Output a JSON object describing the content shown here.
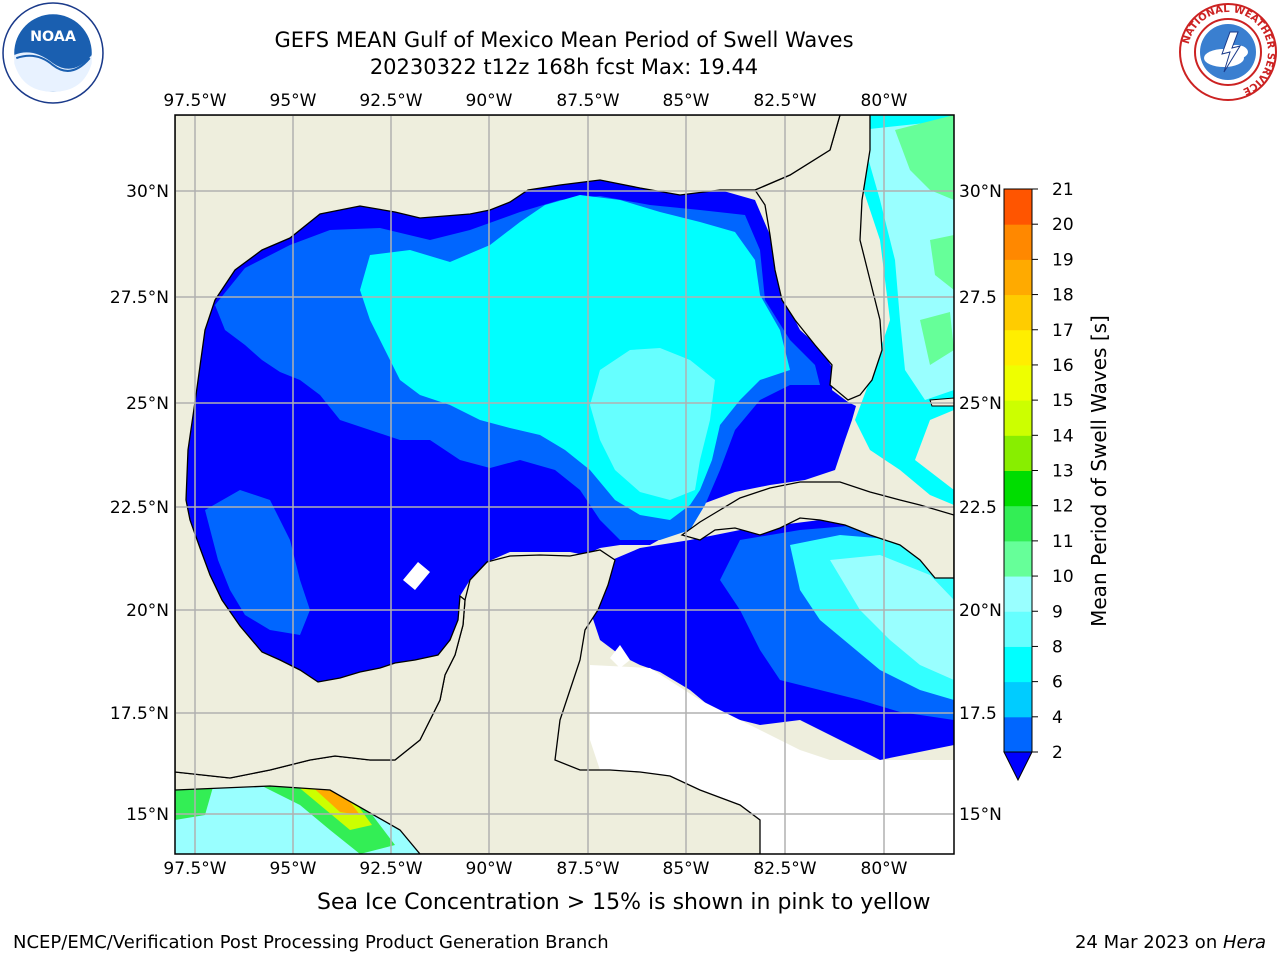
{
  "title": {
    "line1": "GEFS MEAN Gulf of Mexico Mean Period of Swell Waves",
    "line2": "20230322 t12z 168h fcst   Max: 19.44"
  },
  "logos": {
    "left": "noaa-logo",
    "right": "national-weather-service-logo",
    "right_text": "NATIONAL WEATHER SERVICE"
  },
  "map": {
    "lon_ticks": [
      "97.5°W",
      "95°W",
      "92.5°W",
      "90°W",
      "87.5°W",
      "85°W",
      "82.5°W",
      "80°W"
    ],
    "lat_ticks_left": [
      "30°N",
      "27.5°N",
      "25°N",
      "22.5°N",
      "20°N",
      "17.5°N",
      "15°N"
    ],
    "lat_ticks_right": [
      "30°N",
      "27.5",
      "25°N",
      "22.5",
      "20°N",
      "17.5",
      "15°N"
    ],
    "land_color": "#eeeedd",
    "grid_color": "#b0b0b0"
  },
  "colorbar": {
    "label": "Mean Period of Swell Waves [s]",
    "ticks": [
      "2",
      "4",
      "6",
      "8",
      "9",
      "10",
      "11",
      "12",
      "13",
      "14",
      "15",
      "16",
      "17",
      "18",
      "19",
      "20",
      "21"
    ],
    "colors": [
      "#0066ff",
      "#00ccff",
      "#00ffff",
      "#66ffff",
      "#99ffff",
      "#66ff99",
      "#33ee55",
      "#00dd00",
      "#88ee00",
      "#ccff00",
      "#eeff00",
      "#ffee00",
      "#ffcc00",
      "#ffaa00",
      "#ff8800",
      "#ff5500",
      "#ff2200",
      "#ff0000"
    ],
    "extend_color": "#0000ff"
  },
  "footer": {
    "ice_note": "Sea Ice Concentration > 15% is shown in pink to yellow",
    "left": "NCEP/EMC/Verification Post Processing Product Generation Branch",
    "right_prefix": "24 Mar 2023 on ",
    "right_host": "Hera"
  }
}
